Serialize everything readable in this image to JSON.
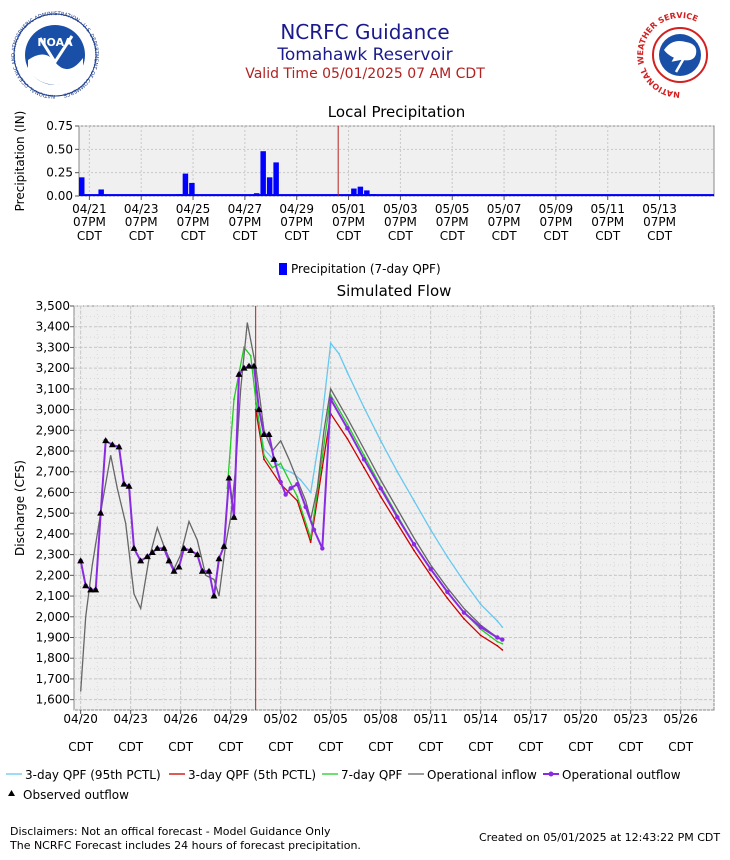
{
  "header": {
    "title": "NCRFC Guidance",
    "site": "Tomahawk Reservoir",
    "valid_time": "Valid Time 05/01/2025 07 AM CDT",
    "noaa_logo_text": "NOAA",
    "noaa_ring_text": "NATIONAL OCEANIC AND ATMOSPHERIC ADMINISTRATION · U.S. DEPARTMENT OF COMMERCE",
    "nws_ring_text": "NATIONAL WEATHER SERVICE"
  },
  "colors": {
    "precip_bar": "#0000ff",
    "now_line": "#b22222",
    "qpf95": "#66c8f0",
    "qpf5": "#cc0000",
    "qpf7": "#22cc22",
    "inflow": "#666666",
    "outflow": "#8a2be2",
    "observed": "#000000",
    "plot_bg": "#f0f0f0",
    "grid": "#c8c8c8"
  },
  "chart_data": [
    {
      "type": "bar",
      "title": "Local Precipitation",
      "ylabel": "Precipitation (IN)",
      "ylim": [
        0,
        0.75
      ],
      "yticks": [
        "0.00",
        "0.25",
        "0.50",
        "0.75"
      ],
      "xlim_days": [
        0,
        24.5
      ],
      "xticks": [
        {
          "at": 0.4,
          "date": "04/21",
          "time": "07PM",
          "tz": "CDT"
        },
        {
          "at": 2.4,
          "date": "04/23",
          "time": "07PM",
          "tz": "CDT"
        },
        {
          "at": 4.4,
          "date": "04/25",
          "time": "07PM",
          "tz": "CDT"
        },
        {
          "at": 6.4,
          "date": "04/27",
          "time": "07PM",
          "tz": "CDT"
        },
        {
          "at": 8.4,
          "date": "04/29",
          "time": "07PM",
          "tz": "CDT"
        },
        {
          "at": 10.4,
          "date": "05/01",
          "time": "07PM",
          "tz": "CDT"
        },
        {
          "at": 12.4,
          "date": "05/03",
          "time": "07PM",
          "tz": "CDT"
        },
        {
          "at": 14.4,
          "date": "05/05",
          "time": "07PM",
          "tz": "CDT"
        },
        {
          "at": 16.4,
          "date": "05/07",
          "time": "07PM",
          "tz": "CDT"
        },
        {
          "at": 18.4,
          "date": "05/09",
          "time": "07PM",
          "tz": "CDT"
        },
        {
          "at": 20.4,
          "date": "05/11",
          "time": "07PM",
          "tz": "CDT"
        },
        {
          "at": 22.4,
          "date": "05/13",
          "time": "07PM",
          "tz": "CDT"
        }
      ],
      "now_day": 10.0,
      "bar_width_days": 0.25,
      "bars": [
        [
          0.0,
          0.2
        ],
        [
          0.75,
          0.07
        ],
        [
          3.75,
          0.02
        ],
        [
          4.0,
          0.24
        ],
        [
          4.25,
          0.14
        ],
        [
          6.75,
          0.03
        ],
        [
          7.0,
          0.48
        ],
        [
          7.25,
          0.2
        ],
        [
          7.5,
          0.36
        ],
        [
          10.5,
          0.08
        ],
        [
          10.75,
          0.1
        ],
        [
          11.0,
          0.06
        ],
        [
          11.25,
          0.02
        ]
      ],
      "baseline_value": 0.01,
      "legend": [
        "Precipitation (7-day QPF)"
      ]
    },
    {
      "type": "line",
      "title": "Simulated Flow",
      "ylabel": "Discharge (CFS)",
      "ylim": [
        1550,
        3500
      ],
      "yticks": [
        1600,
        1700,
        1800,
        1900,
        2000,
        2100,
        2200,
        2300,
        2400,
        2500,
        2600,
        2700,
        2800,
        2900,
        3000,
        3100,
        3200,
        3300,
        3400,
        3500
      ],
      "xlim_days": [
        -0.4,
        38.0
      ],
      "xticks": [
        {
          "at": 0,
          "date": "04/20",
          "tz": "CDT"
        },
        {
          "at": 3,
          "date": "04/23",
          "tz": "CDT"
        },
        {
          "at": 6,
          "date": "04/26",
          "tz": "CDT"
        },
        {
          "at": 9,
          "date": "04/29",
          "tz": "CDT"
        },
        {
          "at": 12,
          "date": "05/02",
          "tz": "CDT"
        },
        {
          "at": 15,
          "date": "05/05",
          "tz": "CDT"
        },
        {
          "at": 18,
          "date": "05/08",
          "tz": "CDT"
        },
        {
          "at": 21,
          "date": "05/11",
          "tz": "CDT"
        },
        {
          "at": 24,
          "date": "05/14",
          "tz": "CDT"
        },
        {
          "at": 27,
          "date": "05/17",
          "tz": "CDT"
        },
        {
          "at": 30,
          "date": "05/20",
          "tz": "CDT"
        },
        {
          "at": 33,
          "date": "05/23",
          "tz": "CDT"
        },
        {
          "at": 36,
          "date": "05/26",
          "tz": "CDT"
        }
      ],
      "now_day": 10.5,
      "grid": true,
      "series": [
        {
          "name": "3-day QPF (95th PCTL)",
          "key": "qpf95",
          "points": [
            [
              10.5,
              3020
            ],
            [
              11,
              2810
            ],
            [
              12,
              2720
            ],
            [
              12.8,
              2690
            ],
            [
              13.2,
              2660
            ],
            [
              13.8,
              2600
            ],
            [
              14.4,
              2900
            ],
            [
              15,
              3320
            ],
            [
              15.5,
              3270
            ],
            [
              16,
              3180
            ],
            [
              17,
              3010
            ],
            [
              18,
              2850
            ],
            [
              19,
              2700
            ],
            [
              20,
              2560
            ],
            [
              21,
              2420
            ],
            [
              22,
              2290
            ],
            [
              23,
              2170
            ],
            [
              24,
              2060
            ],
            [
              25,
              1980
            ],
            [
              25.3,
              1950
            ]
          ]
        },
        {
          "name": "3-day QPF (5th PCTL)",
          "key": "qpf5",
          "points": [
            [
              10.5,
              3000
            ],
            [
              11,
              2760
            ],
            [
              12,
              2640
            ],
            [
              13,
              2560
            ],
            [
              13.8,
              2360
            ],
            [
              14.5,
              2720
            ],
            [
              15,
              2980
            ],
            [
              16,
              2860
            ],
            [
              17,
              2720
            ],
            [
              18,
              2580
            ],
            [
              19,
              2450
            ],
            [
              20,
              2320
            ],
            [
              21,
              2200
            ],
            [
              22,
              2090
            ],
            [
              23,
              1990
            ],
            [
              24,
              1910
            ],
            [
              25,
              1860
            ],
            [
              25.3,
              1840
            ]
          ]
        },
        {
          "name": "7-day QPF",
          "key": "qpf7",
          "points": [
            [
              8.8,
              2620
            ],
            [
              9.2,
              3050
            ],
            [
              9.8,
              3300
            ],
            [
              10.2,
              3260
            ],
            [
              10.5,
              3050
            ],
            [
              11,
              2780
            ],
            [
              11.5,
              2720
            ],
            [
              12,
              2740
            ],
            [
              13,
              2580
            ],
            [
              13.8,
              2380
            ],
            [
              14.5,
              2770
            ],
            [
              15,
              3070
            ],
            [
              16,
              2930
            ],
            [
              17,
              2780
            ],
            [
              18,
              2630
            ],
            [
              19,
              2490
            ],
            [
              20,
              2350
            ],
            [
              21,
              2230
            ],
            [
              22,
              2120
            ],
            [
              23,
              2020
            ],
            [
              24,
              1940
            ],
            [
              25,
              1880
            ],
            [
              25.3,
              1870
            ]
          ]
        },
        {
          "name": "Operational inflow",
          "key": "inflow",
          "points": [
            [
              0,
              1640
            ],
            [
              0.3,
              2000
            ],
            [
              0.7,
              2250
            ],
            [
              1.3,
              2550
            ],
            [
              1.8,
              2780
            ],
            [
              2.2,
              2620
            ],
            [
              2.7,
              2450
            ],
            [
              3.2,
              2110
            ],
            [
              3.6,
              2040
            ],
            [
              4.1,
              2280
            ],
            [
              4.6,
              2430
            ],
            [
              5.0,
              2340
            ],
            [
              5.6,
              2230
            ],
            [
              6.0,
              2300
            ],
            [
              6.5,
              2460
            ],
            [
              7.0,
              2370
            ],
            [
              7.5,
              2200
            ],
            [
              8.0,
              2180
            ],
            [
              8.3,
              2100
            ],
            [
              8.7,
              2350
            ],
            [
              9.0,
              2480
            ],
            [
              9.3,
              2720
            ],
            [
              9.6,
              3100
            ],
            [
              10.0,
              3420
            ],
            [
              10.5,
              3210
            ],
            [
              11.0,
              2900
            ],
            [
              11.5,
              2800
            ],
            [
              12.0,
              2850
            ],
            [
              12.5,
              2760
            ],
            [
              13.0,
              2660
            ],
            [
              13.5,
              2560
            ],
            [
              13.8,
              2470
            ],
            [
              14.2,
              2620
            ],
            [
              14.6,
              2900
            ],
            [
              15.0,
              3100
            ],
            [
              16,
              2960
            ],
            [
              17,
              2810
            ],
            [
              18,
              2660
            ],
            [
              19,
              2520
            ],
            [
              20,
              2380
            ],
            [
              21,
              2250
            ],
            [
              22,
              2140
            ],
            [
              23,
              2040
            ],
            [
              24,
              1960
            ],
            [
              25,
              1900
            ],
            [
              25.3,
              1890
            ]
          ]
        },
        {
          "name": "Operational outflow",
          "key": "outflow",
          "points": [
            [
              0,
              2270
            ],
            [
              0.3,
              2150
            ],
            [
              0.6,
              2130
            ],
            [
              0.9,
              2130
            ],
            [
              1.2,
              2500
            ],
            [
              1.5,
              2850
            ],
            [
              1.9,
              2830
            ],
            [
              2.3,
              2820
            ],
            [
              2.6,
              2640
            ],
            [
              2.9,
              2630
            ],
            [
              3.2,
              2330
            ],
            [
              3.6,
              2270
            ],
            [
              4.0,
              2290
            ],
            [
              4.3,
              2310
            ],
            [
              4.6,
              2330
            ],
            [
              5.0,
              2330
            ],
            [
              5.3,
              2270
            ],
            [
              5.6,
              2220
            ],
            [
              5.9,
              2240
            ],
            [
              6.2,
              2330
            ],
            [
              6.6,
              2320
            ],
            [
              7.0,
              2300
            ],
            [
              7.3,
              2220
            ],
            [
              7.7,
              2220
            ],
            [
              8.0,
              2100
            ],
            [
              8.3,
              2280
            ],
            [
              8.6,
              2340
            ],
            [
              8.9,
              2670
            ],
            [
              9.2,
              2480
            ],
            [
              9.5,
              3170
            ],
            [
              9.8,
              3200
            ],
            [
              10.1,
              3210
            ],
            [
              10.4,
              3210
            ],
            [
              10.7,
              3000
            ],
            [
              11.0,
              2880
            ],
            [
              11.3,
              2880
            ],
            [
              11.6,
              2760
            ],
            [
              12.0,
              2650
            ],
            [
              12.3,
              2590
            ],
            [
              12.6,
              2620
            ],
            [
              13.0,
              2640
            ],
            [
              13.5,
              2530
            ],
            [
              14.0,
              2420
            ],
            [
              14.5,
              2330
            ],
            [
              15.0,
              3050
            ],
            [
              16,
              2910
            ],
            [
              17,
              2760
            ],
            [
              18,
              2620
            ],
            [
              19,
              2480
            ],
            [
              20,
              2350
            ],
            [
              21,
              2230
            ],
            [
              22,
              2120
            ],
            [
              23,
              2020
            ],
            [
              24,
              1950
            ],
            [
              25,
              1900
            ],
            [
              25.3,
              1890
            ]
          ]
        },
        {
          "name": "Observed outflow",
          "key": "observed",
          "marker": "triangle",
          "points": [
            [
              0,
              2270
            ],
            [
              0.3,
              2150
            ],
            [
              0.6,
              2130
            ],
            [
              0.9,
              2130
            ],
            [
              1.2,
              2500
            ],
            [
              1.5,
              2850
            ],
            [
              1.9,
              2830
            ],
            [
              2.3,
              2820
            ],
            [
              2.6,
              2640
            ],
            [
              2.9,
              2630
            ],
            [
              3.2,
              2330
            ],
            [
              3.6,
              2270
            ],
            [
              4.0,
              2290
            ],
            [
              4.3,
              2310
            ],
            [
              4.6,
              2330
            ],
            [
              5.0,
              2330
            ],
            [
              5.3,
              2270
            ],
            [
              5.6,
              2220
            ],
            [
              5.9,
              2240
            ],
            [
              6.2,
              2330
            ],
            [
              6.6,
              2320
            ],
            [
              7.0,
              2300
            ],
            [
              7.3,
              2220
            ],
            [
              7.7,
              2220
            ],
            [
              8.0,
              2100
            ],
            [
              8.3,
              2280
            ],
            [
              8.6,
              2340
            ],
            [
              8.9,
              2670
            ],
            [
              9.2,
              2480
            ],
            [
              9.5,
              3170
            ],
            [
              9.8,
              3200
            ],
            [
              10.1,
              3210
            ],
            [
              10.4,
              3210
            ],
            [
              10.7,
              3000
            ],
            [
              11.0,
              2880
            ],
            [
              11.3,
              2880
            ],
            [
              11.6,
              2760
            ]
          ]
        }
      ]
    }
  ],
  "footer": {
    "disclaimer1": "Disclaimers: Not an offical forecast - Model Guidance Only",
    "disclaimer2": "The NCRFC Forecast includes 24 hours of forecast precipitation.",
    "created": "Created on 05/01/2025 at 12:43:22 PM CDT"
  }
}
